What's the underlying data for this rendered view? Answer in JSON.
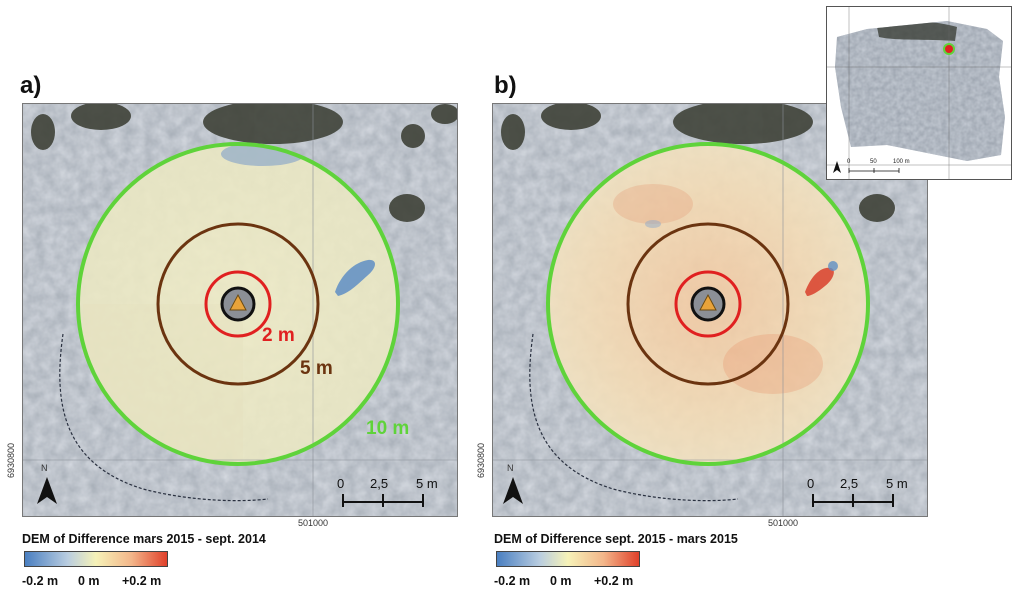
{
  "panels": [
    {
      "letter": "a)",
      "legend_title": "DEM of Difference mars 2015 - sept. 2014",
      "ring_labels": {
        "small": "2 m",
        "medium": "5 m",
        "large": "10 m"
      },
      "easting_label": "501000",
      "northing_label": "6930800",
      "scale": {
        "t0": "0",
        "t1": "2,5",
        "t2": "5 m"
      },
      "legend_ticks": {
        "min": "-0.2 m",
        "mid": "0 m",
        "max": "+0.2 m"
      },
      "north": "N"
    },
    {
      "letter": "b)",
      "legend_title": "DEM of Difference sept. 2015 - mars 2015",
      "easting_label": "501000",
      "northing_label": "6930800",
      "scale": {
        "t0": "0",
        "t1": "2,5",
        "t2": "5 m"
      },
      "legend_ticks": {
        "min": "-0.2 m",
        "mid": "0 m",
        "max": "+0.2 m"
      },
      "north": "N"
    }
  ],
  "inset": {
    "scale": {
      "t0": "0",
      "t1": "50",
      "t2": "100 m"
    }
  },
  "colors": {
    "ring_small": "#e02020",
    "ring_medium": "#6b3410",
    "ring_large": "#5fd33a",
    "legend_low": "#4a7fc1",
    "legend_mid": "#f6f2b8",
    "legend_high": "#e0402a",
    "marker": "#e8a33a"
  }
}
